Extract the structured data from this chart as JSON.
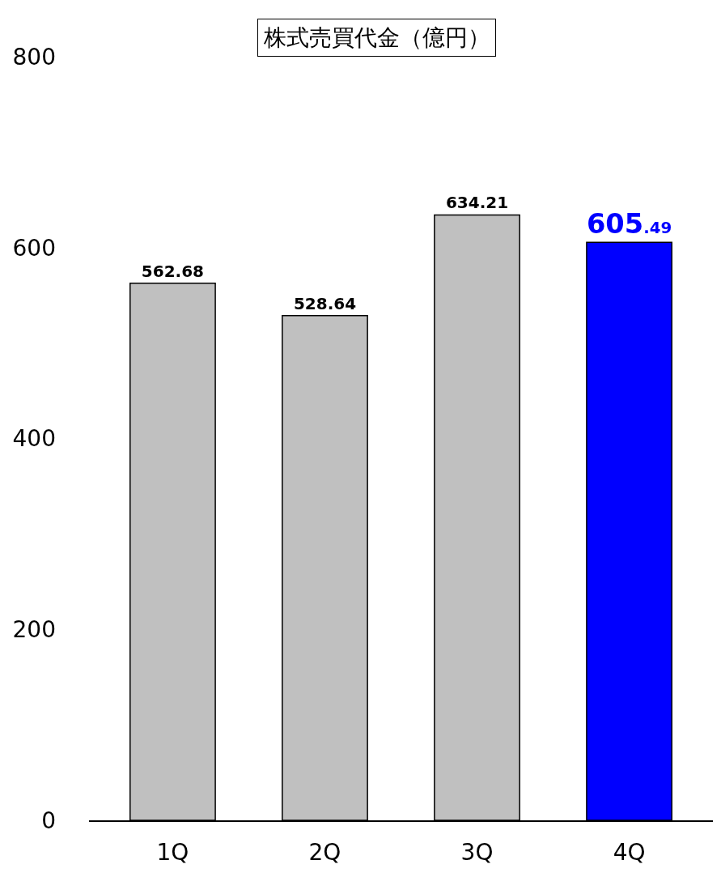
{
  "chart_data": {
    "type": "bar",
    "title": "株式売買代金（億円）",
    "categories": [
      "1Q",
      "2Q",
      "3Q",
      "4Q"
    ],
    "values": [
      562.68,
      528.64,
      634.21,
      605.49
    ],
    "colors": [
      "#c0c0c0",
      "#c0c0c0",
      "#c0c0c0",
      "#0000ff"
    ],
    "ylim": [
      0,
      800
    ],
    "yticks": [
      0,
      200,
      400,
      600,
      800
    ],
    "data_labels": true,
    "legend": false
  }
}
